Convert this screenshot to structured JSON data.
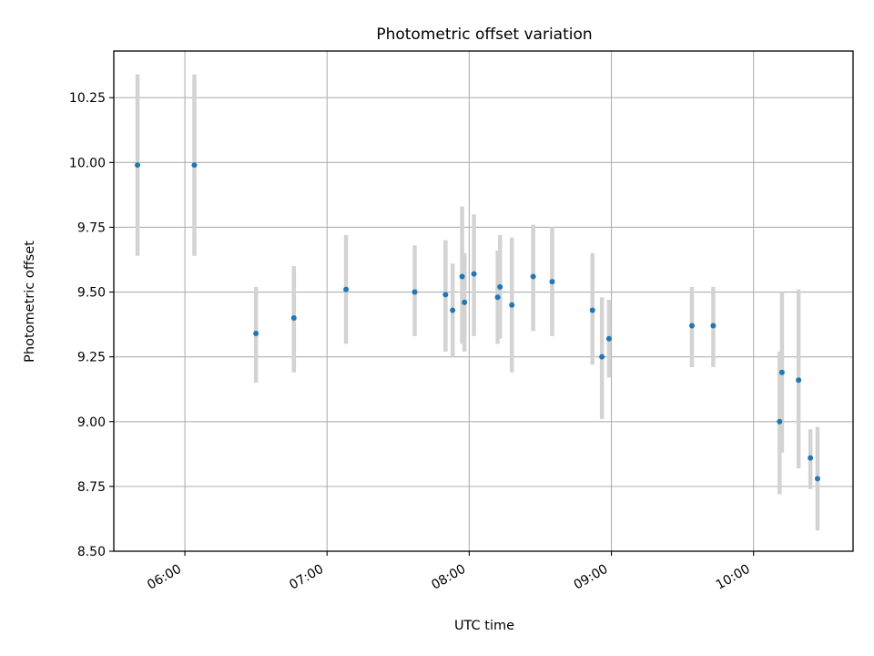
{
  "chart_data": {
    "type": "scatter",
    "title": "Photometric offset variation",
    "xlabel": "UTC time",
    "ylabel": "Photometric offset",
    "xlim": [
      "05:30",
      "10:42"
    ],
    "ylim": [
      8.5,
      10.43
    ],
    "grid": true,
    "x_ticks": [
      "06:00",
      "07:00",
      "08:00",
      "09:00",
      "10:00"
    ],
    "y_ticks": [
      8.5,
      8.75,
      9.0,
      9.25,
      9.5,
      9.75,
      10.0,
      10.25
    ],
    "marker_color": "#1f77b4",
    "errorbar_color": "#d3d3d3",
    "points": [
      {
        "t": "05:40",
        "y": 9.99,
        "lo": 9.64,
        "hi": 10.34
      },
      {
        "t": "06:04",
        "y": 9.99,
        "lo": 9.64,
        "hi": 10.34
      },
      {
        "t": "06:30",
        "y": 9.34,
        "lo": 9.15,
        "hi": 9.52
      },
      {
        "t": "06:46",
        "y": 9.4,
        "lo": 9.19,
        "hi": 9.6
      },
      {
        "t": "07:08",
        "y": 9.51,
        "lo": 9.3,
        "hi": 9.72
      },
      {
        "t": "07:37",
        "y": 9.5,
        "lo": 9.33,
        "hi": 9.68
      },
      {
        "t": "07:50",
        "y": 9.49,
        "lo": 9.27,
        "hi": 9.7
      },
      {
        "t": "07:53",
        "y": 9.43,
        "lo": 9.25,
        "hi": 9.61
      },
      {
        "t": "07:57",
        "y": 9.56,
        "lo": 9.3,
        "hi": 9.83
      },
      {
        "t": "07:58",
        "y": 9.46,
        "lo": 9.27,
        "hi": 9.65
      },
      {
        "t": "08:02",
        "y": 9.57,
        "lo": 9.33,
        "hi": 9.8
      },
      {
        "t": "08:12",
        "y": 9.48,
        "lo": 9.3,
        "hi": 9.66
      },
      {
        "t": "08:13",
        "y": 9.52,
        "lo": 9.32,
        "hi": 9.72
      },
      {
        "t": "08:18",
        "y": 9.45,
        "lo": 9.19,
        "hi": 9.71
      },
      {
        "t": "08:27",
        "y": 9.56,
        "lo": 9.35,
        "hi": 9.76
      },
      {
        "t": "08:35",
        "y": 9.54,
        "lo": 9.33,
        "hi": 9.75
      },
      {
        "t": "08:52",
        "y": 9.43,
        "lo": 9.22,
        "hi": 9.65
      },
      {
        "t": "08:56",
        "y": 9.25,
        "lo": 9.01,
        "hi": 9.48
      },
      {
        "t": "08:59",
        "y": 9.32,
        "lo": 9.17,
        "hi": 9.47
      },
      {
        "t": "09:34",
        "y": 9.37,
        "lo": 9.21,
        "hi": 9.52
      },
      {
        "t": "09:43",
        "y": 9.37,
        "lo": 9.21,
        "hi": 9.52
      },
      {
        "t": "10:11",
        "y": 9.0,
        "lo": 8.72,
        "hi": 9.27
      },
      {
        "t": "10:12",
        "y": 9.19,
        "lo": 8.88,
        "hi": 9.5
      },
      {
        "t": "10:19",
        "y": 9.16,
        "lo": 8.82,
        "hi": 9.51
      },
      {
        "t": "10:24",
        "y": 8.86,
        "lo": 8.74,
        "hi": 8.97
      },
      {
        "t": "10:27",
        "y": 8.78,
        "lo": 8.58,
        "hi": 8.98
      }
    ]
  }
}
